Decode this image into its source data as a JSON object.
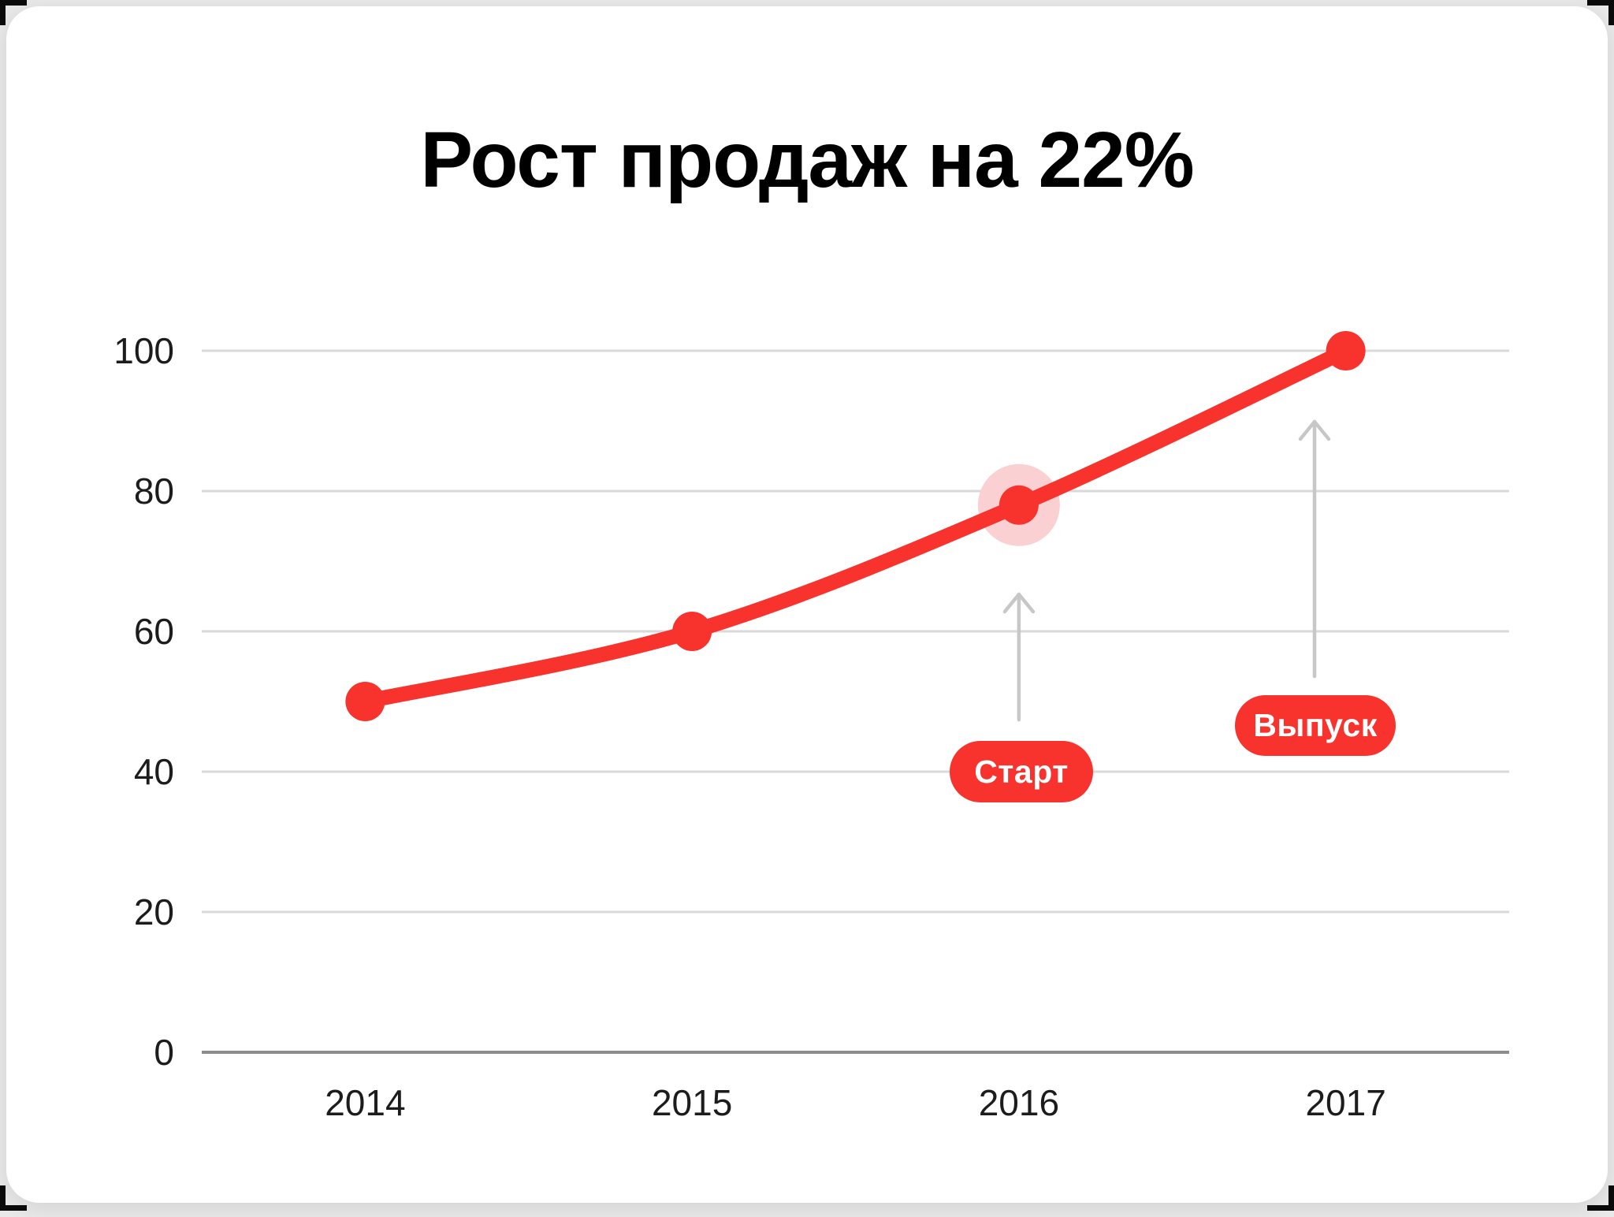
{
  "page": {
    "background": "#e9e9e9",
    "card_background": "#ffffff",
    "crop_mark_color": "#0a0a0a"
  },
  "title": "Рост продаж на 22%",
  "chart_data": {
    "type": "line",
    "title": "Рост продаж на 22%",
    "categories": [
      "2014",
      "2015",
      "2016",
      "2017"
    ],
    "values": [
      50,
      60,
      78,
      100
    ],
    "yticks": [
      0,
      20,
      40,
      60,
      80,
      100
    ],
    "ylim": [
      0,
      100
    ],
    "xlabel": "",
    "ylabel": "",
    "grid": true,
    "legend": "none",
    "line_color": "#f8322c",
    "point_color": "#f8322c",
    "line_width": 19,
    "point_radius": 25,
    "highlight": {
      "index": 2,
      "halo_color": "#fbd0d3",
      "halo_radius": 52
    },
    "grid_color": "#d9d9d9",
    "zero_line_color": "#8c8c8c",
    "tick_color": "#1c1c1c",
    "annotations": [
      {
        "label": "Старт",
        "target_year": "2016",
        "badge_color": "#f8322c",
        "text_color": "#ffffff",
        "arrow_color": "#c7c7c7"
      },
      {
        "label": "Выпуск",
        "target_year": "2017",
        "badge_color": "#f8322c",
        "text_color": "#ffffff",
        "arrow_color": "#c7c7c7"
      }
    ]
  }
}
